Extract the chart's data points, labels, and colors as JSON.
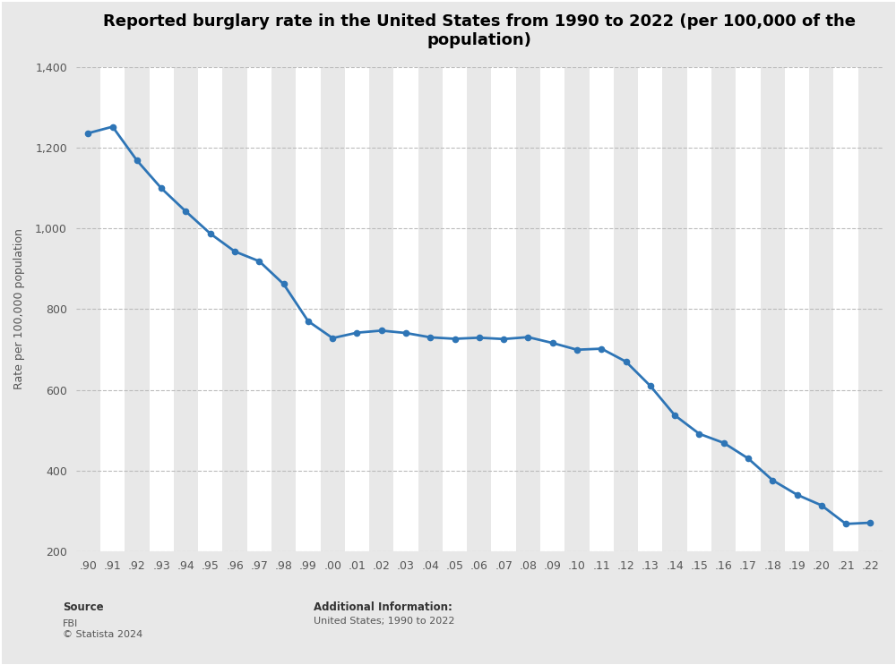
{
  "title": "Reported burglary rate in the United States from 1990 to 2022 (per 100,000 of the\npopulation)",
  "ylabel": "Rate per 100,000 population",
  "outer_background": "#e8e8e8",
  "plot_background": "#ffffff",
  "stripe_color": "#e8e8e8",
  "line_color": "#2e75b6",
  "marker_color": "#2e75b6",
  "years": [
    1990,
    1991,
    1992,
    1993,
    1994,
    1995,
    1996,
    1997,
    1998,
    1999,
    2000,
    2001,
    2002,
    2003,
    2004,
    2005,
    2006,
    2007,
    2008,
    2009,
    2010,
    2011,
    2012,
    2013,
    2014,
    2015,
    2016,
    2017,
    2018,
    2019,
    2020,
    2021,
    2022
  ],
  "values": [
    1235.9,
    1252.0,
    1168.2,
    1099.2,
    1042.0,
    987.1,
    943.0,
    918.8,
    862.0,
    770.4,
    728.4,
    741.8,
    747.0,
    741.0,
    730.3,
    726.7,
    729.4,
    726.1,
    730.8,
    716.3,
    699.6,
    702.2,
    670.2,
    610.0,
    537.2,
    491.4,
    468.9,
    430.4,
    376.4,
    340.5,
    314.2,
    268.2,
    271.1
  ],
  "ylim": [
    200,
    1400
  ],
  "yticks": [
    200,
    400,
    600,
    800,
    1000,
    1200,
    1400
  ],
  "source_label": "Source",
  "source_body": "FBI\n© Statista 2024",
  "addinfo_label": "Additional Information:",
  "addinfo_body": "United States; 1990 to 2022",
  "title_fontsize": 13,
  "label_fontsize": 9,
  "tick_fontsize": 9
}
